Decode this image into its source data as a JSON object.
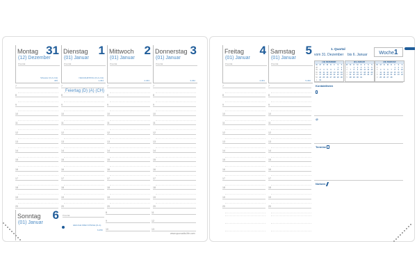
{
  "left_days": [
    {
      "name": "Montag",
      "number": "31",
      "sub": "(12) Dezember",
      "priority": "Priorität",
      "holiday": "Silvester (D-A-CH)",
      "count": "365"
    },
    {
      "name": "Dienstag",
      "number": "1",
      "sub": "(01) Januar",
      "priority": "Priorität",
      "holiday": "NEUJAHRSTAG (D-A-CH)",
      "count": "1-364"
    },
    {
      "name": "Mittwoch",
      "number": "2",
      "sub": "(01) Januar",
      "priority": "Priorität",
      "holiday": "",
      "count": "2-363"
    },
    {
      "name": "Donnerstag",
      "number": "3",
      "sub": "(01) Januar",
      "priority": "Priorität",
      "holiday": "",
      "count": "3-362"
    }
  ],
  "right_days": [
    {
      "name": "Freitag",
      "number": "4",
      "sub": "(01) Januar",
      "priority": "Priorität",
      "holiday": "",
      "count": "4-361"
    },
    {
      "name": "Samstag",
      "number": "5",
      "sub": "(01) Januar",
      "priority": "Priorität",
      "holiday": "",
      "count": "5-360"
    }
  ],
  "sunday": {
    "name": "Sonntag",
    "number": "6",
    "sub": "(01) Januar",
    "priority": "Priorität",
    "holiday": "HEILIGE DREI KÖNIGE (D-A)",
    "count": "6-359",
    "hours": [
      "8",
      "9",
      "10",
      "11",
      "12",
      "13"
    ]
  },
  "hours": [
    "7",
    "8",
    "9",
    "10",
    "11",
    "12",
    "13",
    "14",
    "15",
    "16",
    "17",
    "18",
    "19",
    "20"
  ],
  "holiday_note": "Feiertag (D) (A) (CH)",
  "website": "www.quovadis-life.com",
  "week": {
    "label": "Woche",
    "number": "1",
    "quarter": "1. Quartal",
    "from": "vom 31. Dezember",
    "to": "bis 6. Januar"
  },
  "mini_calendars": [
    {
      "title": "(12) DEZEMBER",
      "head": [
        "W",
        "M",
        "D",
        "M",
        "D",
        "F",
        "S",
        "S"
      ],
      "weeks": [
        [
          "48",
          "",
          "",
          "",
          "",
          "",
          "1",
          "2"
        ],
        [
          "49",
          "3",
          "4",
          "5",
          "6",
          "7",
          "8",
          "9"
        ],
        [
          "50",
          "10",
          "11",
          "12",
          "13",
          "14",
          "15",
          "16"
        ],
        [
          "51",
          "17",
          "18",
          "19",
          "20",
          "21",
          "22",
          "23"
        ],
        [
          "52",
          "24",
          "25",
          "26",
          "27",
          "28",
          "29",
          "30"
        ],
        [
          "1",
          "31",
          "",
          "",
          "",
          "",
          "",
          ""
        ]
      ]
    },
    {
      "title": "(01) JANUAR",
      "head": [
        "W",
        "M",
        "D",
        "M",
        "D",
        "F",
        "S",
        "S"
      ],
      "weeks": [
        [
          "1",
          "",
          "1",
          "2",
          "3",
          "4",
          "5",
          "6"
        ],
        [
          "2",
          "7",
          "8",
          "9",
          "10",
          "11",
          "12",
          "13"
        ],
        [
          "3",
          "14",
          "15",
          "16",
          "17",
          "18",
          "19",
          "20"
        ],
        [
          "4",
          "21",
          "22",
          "23",
          "24",
          "25",
          "26",
          "27"
        ],
        [
          "5",
          "28",
          "29",
          "30",
          "31",
          "",
          "",
          ""
        ]
      ]
    },
    {
      "title": "(02) FEBRUAR",
      "head": [
        "W",
        "M",
        "D",
        "M",
        "D",
        "F",
        "S",
        "S"
      ],
      "weeks": [
        [
          "5",
          "",
          "",
          "",
          "",
          "1",
          "2",
          "3"
        ],
        [
          "6",
          "4",
          "5",
          "6",
          "7",
          "8",
          "9",
          "10"
        ],
        [
          "7",
          "11",
          "12",
          "13",
          "14",
          "15",
          "16",
          "17"
        ],
        [
          "8",
          "18",
          "19",
          "20",
          "21",
          "22",
          "23",
          "24"
        ],
        [
          "9",
          "25",
          "26",
          "27",
          "28",
          "",
          "",
          ""
        ]
      ]
    }
  ],
  "sections": {
    "contacts": "Kontaktlisten",
    "email": "@",
    "appointments": "Termine",
    "notes": "Notizen"
  },
  "colors": {
    "accent": "#1f5c99",
    "light": "#4a8ac4"
  }
}
